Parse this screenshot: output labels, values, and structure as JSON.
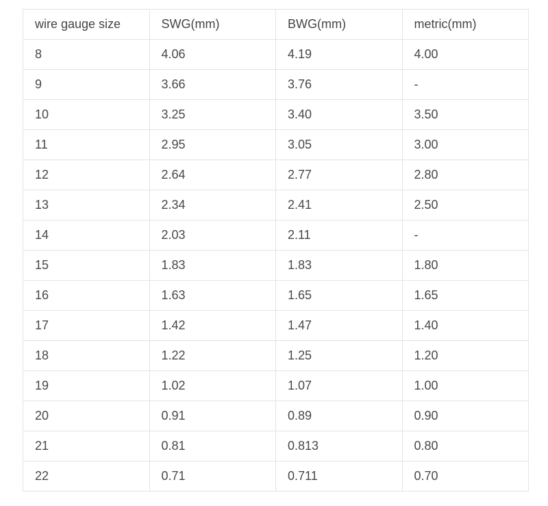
{
  "chart_data": {
    "type": "table",
    "title": "",
    "columns": [
      "wire gauge size",
      "SWG(mm)",
      "BWG(mm)",
      "metric(mm)"
    ],
    "rows": [
      [
        "8",
        "4.06",
        "4.19",
        "4.00"
      ],
      [
        "9",
        "3.66",
        "3.76",
        "-"
      ],
      [
        "10",
        "3.25",
        "3.40",
        "3.50"
      ],
      [
        "11",
        "2.95",
        "3.05",
        "3.00"
      ],
      [
        "12",
        "2.64",
        "2.77",
        "2.80"
      ],
      [
        "13",
        "2.34",
        "2.41",
        "2.50"
      ],
      [
        "14",
        "2.03",
        "2.11",
        "-"
      ],
      [
        "15",
        "1.83",
        "1.83",
        "1.80"
      ],
      [
        "16",
        "1.63",
        "1.65",
        "1.65"
      ],
      [
        "17",
        "1.42",
        "1.47",
        "1.40"
      ],
      [
        "18",
        "1.22",
        "1.25",
        "1.20"
      ],
      [
        "19",
        "1.02",
        "1.07",
        "1.00"
      ],
      [
        "20",
        "0.91",
        "0.89",
        "0.90"
      ],
      [
        "21",
        "0.81",
        "0.813",
        "0.80"
      ],
      [
        "22",
        "0.71",
        "0.711",
        "0.70"
      ]
    ],
    "colors": {
      "border": "#e4e4e4",
      "text": "#45484b",
      "background": "#ffffff"
    }
  }
}
